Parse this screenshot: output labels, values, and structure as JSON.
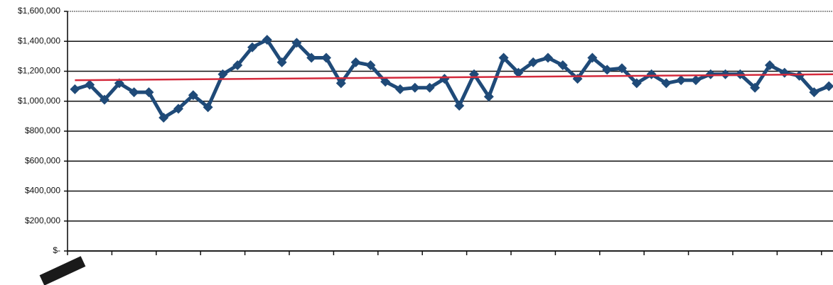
{
  "chart_data": {
    "type": "line",
    "ylim": [
      0,
      1600000
    ],
    "yticks": [
      {
        "value": 0,
        "label": "$-"
      },
      {
        "value": 200000,
        "label": "$200,000"
      },
      {
        "value": 400000,
        "label": "$400,000"
      },
      {
        "value": 600000,
        "label": "$600,000"
      },
      {
        "value": 800000,
        "label": "$800,000"
      },
      {
        "value": 1000000,
        "label": "$1,000,000"
      },
      {
        "value": 1200000,
        "label": "$1,200,000"
      },
      {
        "value": 1400000,
        "label": "$1,400,000"
      },
      {
        "value": 1600000,
        "label": "$1,600,000"
      }
    ],
    "grid": true,
    "series": [
      {
        "color": "#1f4a78",
        "values": [
          1080000,
          1110000,
          1010000,
          1120000,
          1060000,
          1060000,
          890000,
          950000,
          1040000,
          960000,
          1180000,
          1240000,
          1360000,
          1410000,
          1260000,
          1390000,
          1290000,
          1290000,
          1120000,
          1260000,
          1240000,
          1130000,
          1080000,
          1090000,
          1090000,
          1150000,
          970000,
          1180000,
          1030000,
          1290000,
          1190000,
          1260000,
          1290000,
          1240000,
          1150000,
          1290000,
          1210000,
          1220000,
          1120000,
          1180000,
          1120000,
          1140000,
          1140000,
          1180000,
          1180000,
          1180000,
          1090000,
          1240000,
          1190000,
          1170000,
          1060000,
          1100000
        ]
      }
    ],
    "trend": [
      1140000,
      1180000
    ],
    "trend_color": "#d42a3c"
  }
}
